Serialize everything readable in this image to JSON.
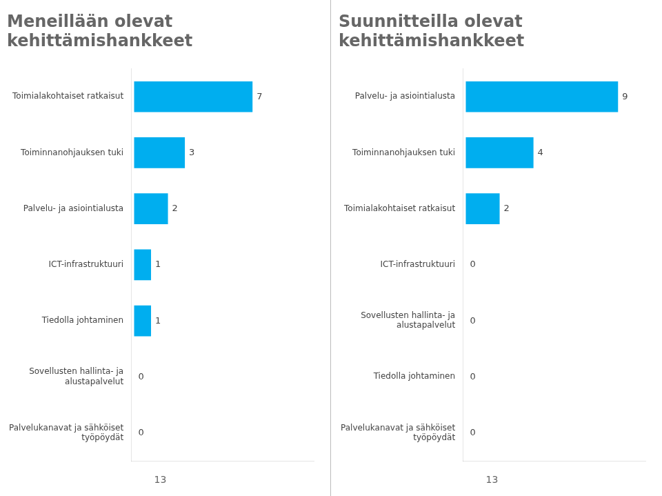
{
  "chart_data": [
    {
      "type": "bar",
      "orientation": "horizontal",
      "title": "Meneillään olevat\nkehittämishankkeet",
      "categories": [
        "Toimialakohtaiset ratkaisut",
        "Toiminnanohjauksen tuki",
        "Palvelu- ja asiointialusta",
        "ICT-infrastruktuuri",
        "Tiedolla johtaminen",
        "Sovellusten hallinta- ja\nalustapalvelut",
        "Palvelukanavat ja sähköiset\ntyöpöydät"
      ],
      "values": [
        7,
        3,
        2,
        1,
        1,
        0,
        0
      ],
      "color": "#00AEEF",
      "xlim": [
        -0.18,
        10.62
      ],
      "grid": false,
      "data_labels": true,
      "tick_labels": "y",
      "annotations": [
        "13"
      ]
    },
    {
      "type": "bar",
      "orientation": "horizontal",
      "title": "Suunnitteilla olevat\nkehittämishankkeet",
      "categories": [
        "Palvelu- ja asiointialusta",
        "Toiminnanohjauksen tuki",
        "Toimialakohtaiset ratkaisut",
        "ICT-infrastruktuuri",
        "Sovellusten hallinta- ja\nalustapalvelut",
        "Tiedolla johtaminen",
        "Palvelukanavat ja sähköiset\ntyöpöydät"
      ],
      "values": [
        9,
        4,
        2,
        0,
        0,
        0,
        0
      ],
      "color": "#00AEEF",
      "xlim": [
        -0.18,
        10.62
      ],
      "grid": false,
      "data_labels": true,
      "tick_labels": "y",
      "annotations": [
        "13"
      ]
    }
  ]
}
